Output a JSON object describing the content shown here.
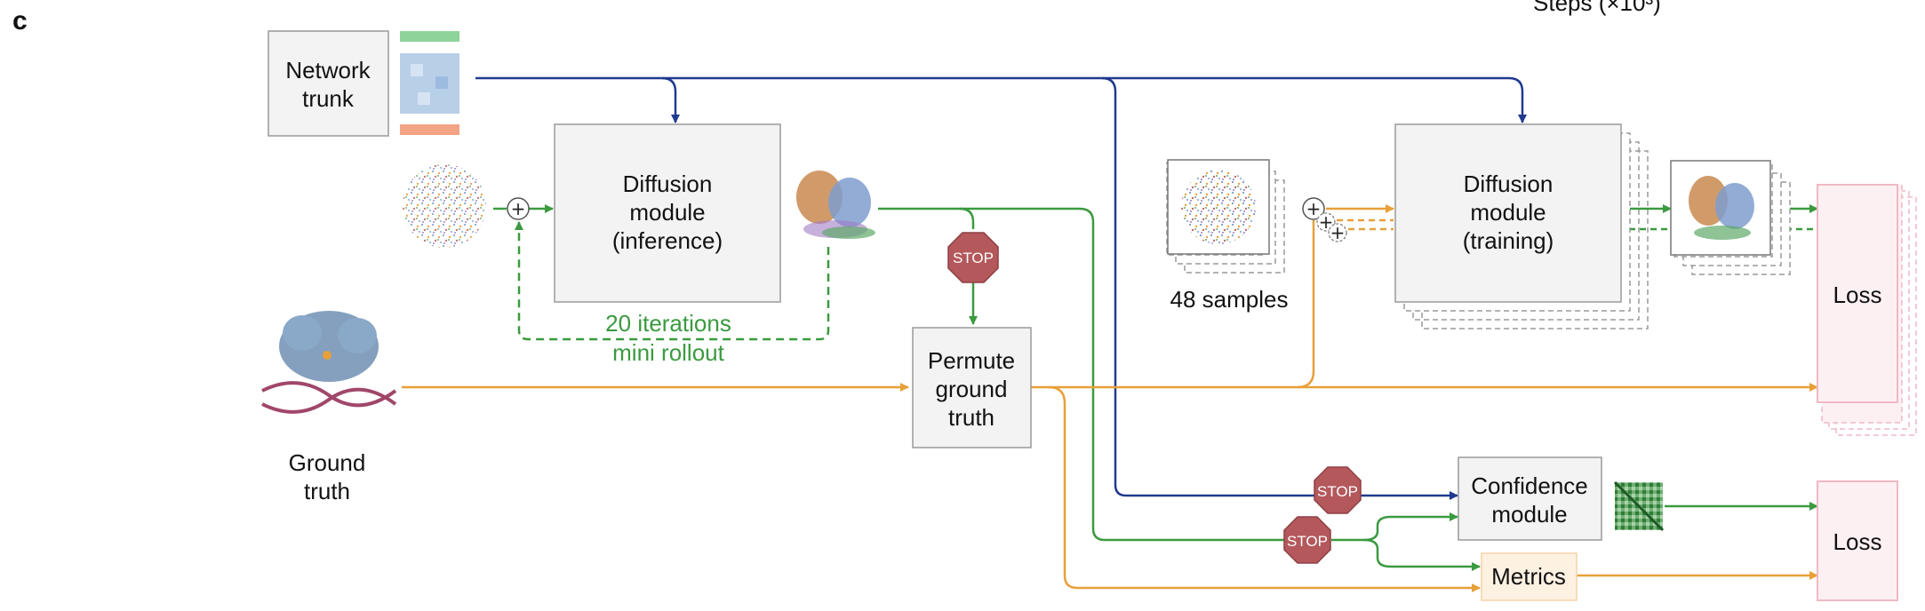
{
  "panel_label": "c",
  "top_caption": "Steps (×10³)",
  "network_trunk": {
    "line1": "Network",
    "line2": "trunk"
  },
  "diffusion_inference": {
    "line1": "Diffusion",
    "line2": "module",
    "line3": "(inference)"
  },
  "iterations_label": {
    "line1": "20 iterations",
    "line2": "mini rollout"
  },
  "permute": {
    "line1": "Permute",
    "line2": "ground",
    "line3": "truth"
  },
  "ground_truth": {
    "line1": "Ground",
    "line2": "truth"
  },
  "samples_label": "48 samples",
  "diffusion_training": {
    "line1": "Diffusion",
    "line2": "module",
    "line3": "(training)"
  },
  "loss_top": "Loss",
  "loss_bottom": "Loss",
  "confidence": {
    "line1": "Confidence",
    "line2": "module"
  },
  "metrics": "Metrics",
  "stop_text": "STOP",
  "plus_symbol": "+",
  "colors": {
    "trunk_blue": "#1f3a8f",
    "ground_truth_orange": "#e8a03a",
    "prediction_green": "#3a9a3f",
    "stop_red": "#b4585c",
    "loss_pink": "#f1b8c4",
    "metrics_fill": "#fdf1e2"
  }
}
